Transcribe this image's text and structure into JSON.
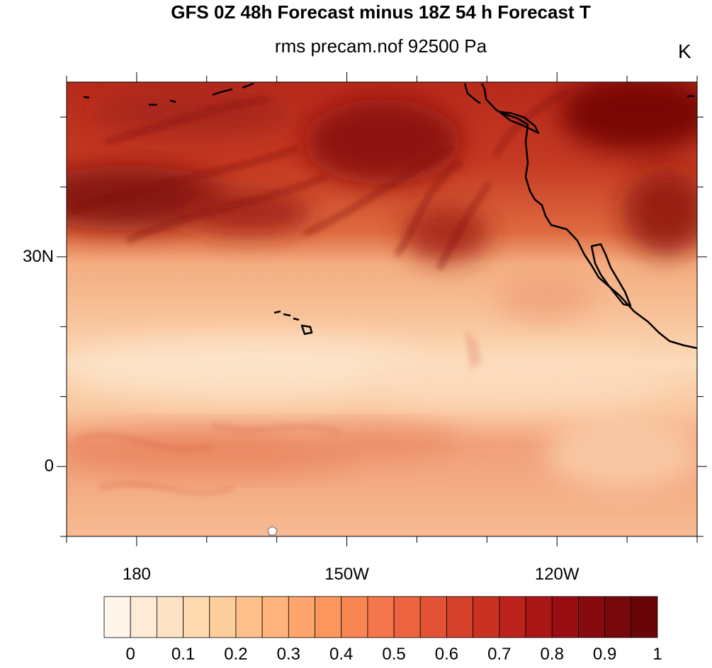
{
  "title": "GFS 0Z 48h Forecast minus 18Z 54 h Forecast T",
  "subtitle": "rms precam.nof 92500 Pa",
  "units": "K",
  "map": {
    "lat_labels": [
      {
        "text": "30N",
        "lat": 30
      },
      {
        "text": "0",
        "lat": 0
      }
    ],
    "lon_labels": [
      {
        "text": "180",
        "lon": 180
      },
      {
        "text": "150W",
        "lon": 210
      },
      {
        "text": "120W",
        "lon": 240
      }
    ],
    "extent": {
      "lon_min": 170,
      "lon_max": 260,
      "lat_min": -10,
      "lat_max": 55
    }
  },
  "colorbar": {
    "labels": [
      "0",
      "0.1",
      "0.2",
      "0.3",
      "0.4",
      "0.5",
      "0.6",
      "0.7",
      "0.8",
      "0.9",
      "1"
    ],
    "colors": [
      "#fff5eb",
      "#fdebd5",
      "#fde3c4",
      "#fdd9b0",
      "#fdcd9b",
      "#fdc08a",
      "#fdb37b",
      "#fda56c",
      "#fc965f",
      "#f88653",
      "#f4764a",
      "#ec6440",
      "#e25336",
      "#d6412b",
      "#c93223",
      "#bb231c",
      "#aa1616",
      "#980d12",
      "#870a0e",
      "#76070b",
      "#690508"
    ]
  }
}
